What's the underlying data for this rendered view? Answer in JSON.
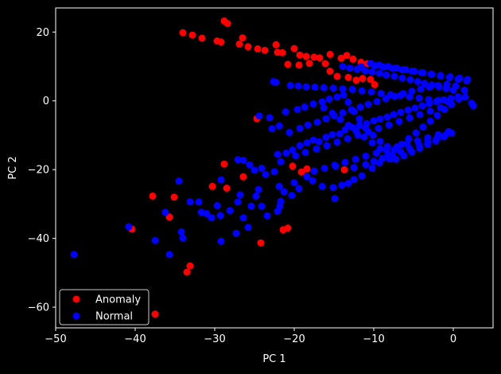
{
  "chart_data": {
    "type": "scatter",
    "title": "",
    "xlabel": "PC 1",
    "ylabel": "PC 2",
    "xlim": [
      -50,
      5
    ],
    "ylim": [
      -66,
      27
    ],
    "xticks": [
      -50,
      -40,
      -30,
      -20,
      -10,
      0
    ],
    "yticks": [
      -60,
      -40,
      -20,
      0,
      20
    ],
    "grid": false,
    "legend_position": "lower-left",
    "background": "#000000",
    "foreground": "#ffffff",
    "series": [
      {
        "name": "Anomaly",
        "color": "#ff0000",
        "points": [
          [
            -28.8,
            23.2
          ],
          [
            -28.4,
            22.5
          ],
          [
            -34,
            19.8
          ],
          [
            -32.8,
            19.1
          ],
          [
            -31.6,
            18.2
          ],
          [
            -29.7,
            17.4
          ],
          [
            -29.2,
            17.1
          ],
          [
            -26.5,
            18.3
          ],
          [
            -26.9,
            16.5
          ],
          [
            -25.8,
            15.7
          ],
          [
            -24.6,
            15.1
          ],
          [
            -23.7,
            14.7
          ],
          [
            -22.1,
            14.1
          ],
          [
            -21.5,
            14.0
          ],
          [
            -22.3,
            16.3
          ],
          [
            -20,
            15.2
          ],
          [
            -19.3,
            13.3
          ],
          [
            -18.5,
            12.9
          ],
          [
            -17.5,
            12.7
          ],
          [
            -16.8,
            12.5
          ],
          [
            -15.5,
            13.5
          ],
          [
            -14.1,
            12.4
          ],
          [
            -13.4,
            13.2
          ],
          [
            -12.6,
            12.1
          ],
          [
            -11.6,
            11.2
          ],
          [
            -10.8,
            10.8
          ],
          [
            -20.8,
            10.6
          ],
          [
            -19.4,
            10.4
          ],
          [
            -18.1,
            10.9
          ],
          [
            -16.1,
            10.8
          ],
          [
            -15.5,
            8.6
          ],
          [
            -14.6,
            7.1
          ],
          [
            -13.2,
            6.8
          ],
          [
            -12.2,
            6.0
          ],
          [
            -11.4,
            6.5
          ],
          [
            -10.4,
            6.2
          ],
          [
            -9.9,
            4.7
          ],
          [
            -24.7,
            -5.2
          ],
          [
            -20.2,
            -19.0
          ],
          [
            -19.1,
            -20.7
          ],
          [
            -18.4,
            -19.8
          ],
          [
            -13.7,
            -20.0
          ],
          [
            -28.8,
            -18.4
          ],
          [
            -26.4,
            -22.1
          ],
          [
            -28.5,
            -25.4
          ],
          [
            -30.3,
            -24.9
          ],
          [
            -37.8,
            -27.7
          ],
          [
            -35.1,
            -28.0
          ],
          [
            -35.7,
            -33.8
          ],
          [
            -40.4,
            -37.3
          ],
          [
            -21.4,
            -37.5
          ],
          [
            -20.8,
            -37.0
          ],
          [
            -24.2,
            -41.3
          ],
          [
            -33.1,
            -48.0
          ],
          [
            -33.5,
            -49.8
          ],
          [
            -37.5,
            -62.0
          ]
        ]
      },
      {
        "name": "Normal",
        "color": "#0000ff",
        "points": [
          [
            -47.7,
            -44.7
          ],
          [
            -40.8,
            -36.6
          ],
          [
            -37.5,
            -40.6
          ],
          [
            -35.7,
            -44.7
          ],
          [
            -36.2,
            -32.4
          ],
          [
            -34.2,
            -38.1
          ],
          [
            -34.0,
            -39.9
          ],
          [
            -33.1,
            -29.4
          ],
          [
            -34.5,
            -23.3
          ],
          [
            -32.0,
            -29.4
          ],
          [
            -31.7,
            -32.4
          ],
          [
            -31.0,
            -32.8
          ],
          [
            -30.4,
            -34.0
          ],
          [
            -29.3,
            -33.3
          ],
          [
            -29.2,
            -40.8
          ],
          [
            -29.7,
            -30.5
          ],
          [
            -29.2,
            -23.0
          ],
          [
            -28.1,
            -31.9
          ],
          [
            -27.3,
            -38.5
          ],
          [
            -27.1,
            -29.4
          ],
          [
            -26.8,
            -27.3
          ],
          [
            -26.4,
            -34.0
          ],
          [
            -25.8,
            -36.8
          ],
          [
            -25.4,
            -30.6
          ],
          [
            -24.8,
            -27.7
          ],
          [
            -24.5,
            -25.8
          ],
          [
            -24.1,
            -30.6
          ],
          [
            -23.4,
            -33.4
          ],
          [
            -22.1,
            -32.1
          ],
          [
            -21.8,
            -30.6
          ],
          [
            -21.7,
            -29.2
          ],
          [
            -21.9,
            -24.9
          ],
          [
            -21.3,
            -26.4
          ],
          [
            -20.3,
            -27.5
          ],
          [
            -20.0,
            -23.8
          ],
          [
            -19.4,
            -25.5
          ],
          [
            -18.4,
            -22.1
          ],
          [
            -17.7,
            -23.2
          ],
          [
            -16.5,
            -24.9
          ],
          [
            -15.1,
            -25.2
          ],
          [
            -14.9,
            -28.4
          ],
          [
            -14.0,
            -24.5
          ],
          [
            -13.2,
            -24.0
          ],
          [
            -12.5,
            -22.9
          ],
          [
            -11.5,
            -21.8
          ],
          [
            -10.2,
            -19.6
          ],
          [
            -9.3,
            -18.0
          ],
          [
            -8.0,
            -16.9
          ],
          [
            -27.1,
            -17.1
          ],
          [
            -26.4,
            -17.3
          ],
          [
            -25.6,
            -18.6
          ],
          [
            -25.0,
            -20.2
          ],
          [
            -24.1,
            -19.6
          ],
          [
            -23.6,
            -21.4
          ],
          [
            -22.5,
            -20.6
          ],
          [
            -21.7,
            -17.7
          ],
          [
            -22.1,
            -15.6
          ],
          [
            -21.0,
            -15.2
          ],
          [
            -20.2,
            -14.3
          ],
          [
            -19.3,
            -13.0
          ],
          [
            -18.4,
            -12.2
          ],
          [
            -17.6,
            -11.4
          ],
          [
            -16.9,
            -11.9
          ],
          [
            -16.0,
            -10.6
          ],
          [
            -15.2,
            -9.8
          ],
          [
            -14.3,
            -9.6
          ],
          [
            -13.6,
            -8.4
          ],
          [
            -12.7,
            -7.7
          ],
          [
            -11.8,
            -7.1
          ],
          [
            -10.9,
            -6.6
          ],
          [
            -10.0,
            -5.8
          ],
          [
            -9.2,
            -5.3
          ],
          [
            -8.3,
            -4.7
          ],
          [
            -7.5,
            -4.0
          ],
          [
            -6.6,
            -3.3
          ],
          [
            -5.7,
            -2.7
          ],
          [
            -4.8,
            -2.1
          ],
          [
            -3.9,
            -1.4
          ],
          [
            -3.0,
            -0.8
          ],
          [
            -2.1,
            -0.2
          ],
          [
            -1.2,
            0.3
          ],
          [
            -0.3,
            0.7
          ],
          [
            0.6,
            1.2
          ],
          [
            1.5,
            1.1
          ],
          [
            2.3,
            -0.7
          ],
          [
            2.5,
            -1.4
          ],
          [
            -22.8,
            -8.1
          ],
          [
            -21.9,
            -7.3
          ],
          [
            -20.6,
            -9.2
          ],
          [
            -19.3,
            -8.0
          ],
          [
            -18.3,
            -7.0
          ],
          [
            -17.1,
            -6.2
          ],
          [
            -16.0,
            -5.2
          ],
          [
            -15.0,
            -4.3
          ],
          [
            -13.9,
            -3.5
          ],
          [
            -12.8,
            -2.6
          ],
          [
            -11.7,
            -1.8
          ],
          [
            -10.7,
            -1.0
          ],
          [
            -9.6,
            -0.2
          ],
          [
            -8.5,
            0.6
          ],
          [
            -7.4,
            1.3
          ],
          [
            -6.3,
            2.1
          ],
          [
            -5.2,
            2.8
          ],
          [
            -4.1,
            3.4
          ],
          [
            -3.0,
            4.0
          ],
          [
            -1.9,
            4.5
          ],
          [
            -0.8,
            4.8
          ],
          [
            0.3,
            4.3
          ],
          [
            1.4,
            3.1
          ],
          [
            -22.6,
            5.6
          ],
          [
            -22.3,
            5.4
          ],
          [
            -20.5,
            4.5
          ],
          [
            -19.5,
            4.3
          ],
          [
            -18.5,
            4.1
          ],
          [
            -17.4,
            4.0
          ],
          [
            -16.3,
            3.8
          ],
          [
            -15.1,
            3.7
          ],
          [
            -13.9,
            3.5
          ],
          [
            -12.7,
            3.3
          ],
          [
            -11.5,
            2.9
          ],
          [
            -10.3,
            2.6
          ],
          [
            -9.1,
            2.2
          ],
          [
            -7.9,
            1.8
          ],
          [
            -6.7,
            1.5
          ],
          [
            -5.5,
            1.1
          ],
          [
            -4.3,
            0.8
          ],
          [
            -3.1,
            0.4
          ],
          [
            -1.9,
            0.1
          ],
          [
            -0.7,
            -0.2
          ],
          [
            -13.9,
            10.0
          ],
          [
            -13.0,
            9.5
          ],
          [
            -12.1,
            9.2
          ],
          [
            -11.1,
            8.8
          ],
          [
            -10.2,
            8.4
          ],
          [
            -9.3,
            8.0
          ],
          [
            -8.4,
            7.5
          ],
          [
            -7.4,
            7.1
          ],
          [
            -6.4,
            6.6
          ],
          [
            -5.4,
            6.1
          ],
          [
            -4.5,
            5.6
          ],
          [
            -3.6,
            5.1
          ],
          [
            -2.7,
            4.6
          ],
          [
            -1.8,
            4.1
          ],
          [
            -0.9,
            3.6
          ],
          [
            0.0,
            3.1
          ],
          [
            -24.4,
            -4.4
          ],
          [
            -23.1,
            -4.9
          ],
          [
            -21.1,
            -3.2
          ],
          [
            -19.6,
            -2.5
          ],
          [
            -18.7,
            -1.8
          ],
          [
            -17.6,
            -0.9
          ],
          [
            -16.5,
            -0.3
          ],
          [
            -15.6,
            0.5
          ],
          [
            -14.6,
            1.1
          ],
          [
            -13.8,
            1.7
          ],
          [
            -13.2,
            -0.4
          ],
          [
            -12.5,
            -3.1
          ],
          [
            -11.8,
            -5.3
          ],
          [
            -11.0,
            -7.9
          ],
          [
            -10.1,
            -10.0
          ],
          [
            -9.2,
            -11.8
          ],
          [
            -8.3,
            -13.3
          ],
          [
            -7.4,
            -14.2
          ],
          [
            -6.5,
            -12.6
          ],
          [
            -5.6,
            -11.0
          ],
          [
            -4.7,
            -9.3
          ],
          [
            -3.8,
            -7.6
          ],
          [
            -2.9,
            -5.9
          ],
          [
            -2.0,
            -4.2
          ],
          [
            -1.1,
            -2.5
          ],
          [
            -0.2,
            -1.0
          ],
          [
            0.7,
            0.5
          ],
          [
            -19.8,
            -16.0
          ],
          [
            -18.6,
            -15.0
          ],
          [
            -17.2,
            -14.0
          ],
          [
            -15.9,
            -13.0
          ],
          [
            -14.6,
            -12.0
          ],
          [
            -13.3,
            -11.0
          ],
          [
            -12.0,
            -10.0
          ],
          [
            -10.7,
            -9.0
          ],
          [
            -9.4,
            -8.0
          ],
          [
            -8.1,
            -7.0
          ],
          [
            -6.8,
            -6.0
          ],
          [
            -5.5,
            -5.0
          ],
          [
            -4.2,
            -4.0
          ],
          [
            -2.9,
            -3.0
          ],
          [
            -1.6,
            -2.0
          ],
          [
            -0.3,
            -1.0
          ],
          [
            -17.5,
            -20.4
          ],
          [
            -16.2,
            -19.6
          ],
          [
            -14.9,
            -18.7
          ],
          [
            -13.6,
            -17.9
          ],
          [
            -12.3,
            -17.0
          ],
          [
            -11.0,
            -16.1
          ],
          [
            -9.7,
            -15.2
          ],
          [
            -8.4,
            -14.3
          ],
          [
            -7.1,
            -13.4
          ],
          [
            -5.8,
            -12.5
          ],
          [
            -4.5,
            -11.6
          ],
          [
            -3.2,
            -10.7
          ],
          [
            -1.9,
            -9.8
          ],
          [
            -0.6,
            -8.9
          ],
          [
            -14.8,
            -19.0
          ],
          [
            -12.5,
            -19.4
          ],
          [
            -11.0,
            -18.5
          ],
          [
            -10.0,
            -17.6
          ],
          [
            -8.9,
            -16.7
          ],
          [
            -7.7,
            -15.8
          ],
          [
            -6.6,
            -14.8
          ],
          [
            -5.5,
            -13.9
          ],
          [
            -4.3,
            -12.9
          ],
          [
            -3.2,
            -12.0
          ],
          [
            -2.1,
            -11.0
          ],
          [
            -1.0,
            -10.0
          ],
          [
            -16.3,
            -2.0
          ],
          [
            -15.2,
            -3.6
          ],
          [
            -14.2,
            -5.4
          ],
          [
            -13.2,
            -7.1
          ],
          [
            -12.2,
            -8.8
          ],
          [
            -11.2,
            -10.5
          ],
          [
            -10.2,
            -12.2
          ],
          [
            -9.2,
            -13.9
          ],
          [
            -8.2,
            -15.6
          ],
          [
            -7.2,
            -17.0
          ],
          [
            -6.2,
            -16.0
          ],
          [
            -5.2,
            -14.9
          ],
          [
            -4.2,
            -13.8
          ],
          [
            -3.2,
            -12.7
          ],
          [
            -2.2,
            -11.6
          ],
          [
            -1.2,
            -10.5
          ],
          [
            -0.2,
            -9.4
          ],
          [
            -9.9,
            10.2
          ],
          [
            -8.8,
            9.8
          ],
          [
            -7.6,
            9.4
          ],
          [
            -6.4,
            9.0
          ],
          [
            -5.2,
            8.6
          ],
          [
            -4.0,
            8.2
          ],
          [
            -2.8,
            7.8
          ],
          [
            -1.6,
            7.4
          ],
          [
            -0.4,
            7.0
          ],
          [
            0.8,
            6.6
          ],
          [
            1.8,
            6.2
          ],
          [
            -11.6,
            9.9
          ],
          [
            -10.4,
            10.9
          ],
          [
            -9.3,
            10.4
          ],
          [
            -8.2,
            10.0
          ],
          [
            -7.1,
            9.5
          ],
          [
            -6.0,
            9.1
          ],
          [
            -4.9,
            8.6
          ],
          [
            -3.8,
            8.2
          ],
          [
            -2.7,
            7.7
          ],
          [
            -1.6,
            7.2
          ],
          [
            -0.5,
            6.8
          ],
          [
            0.6,
            6.3
          ],
          [
            1.7,
            5.8
          ]
        ]
      }
    ]
  }
}
